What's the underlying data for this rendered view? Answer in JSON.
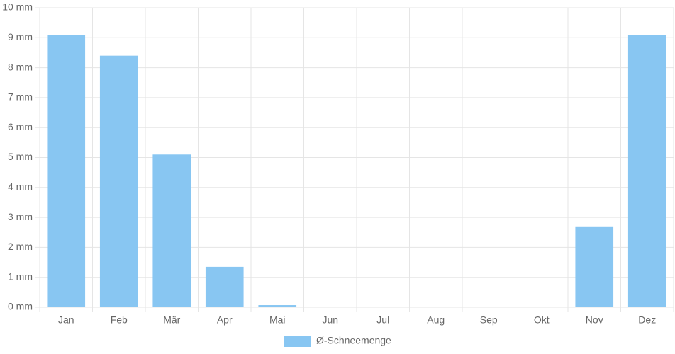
{
  "chart_data": {
    "type": "bar",
    "categories": [
      "Jan",
      "Feb",
      "Mär",
      "Apr",
      "Mai",
      "Jun",
      "Jul",
      "Aug",
      "Sep",
      "Okt",
      "Nov",
      "Dez"
    ],
    "series": [
      {
        "name": "Ø-Schneemenge",
        "color": "#88c6f2",
        "values": [
          9.1,
          8.4,
          5.1,
          1.35,
          0.07,
          0,
          0,
          0,
          0,
          0,
          2.7,
          9.1
        ]
      }
    ],
    "ylim": [
      0,
      10
    ],
    "yticks": [
      {
        "value": 0,
        "label": "0 mm"
      },
      {
        "value": 1,
        "label": "1 mm"
      },
      {
        "value": 2,
        "label": "2 mm"
      },
      {
        "value": 3,
        "label": "3 mm"
      },
      {
        "value": 4,
        "label": "4 mm"
      },
      {
        "value": 5,
        "label": "5 mm"
      },
      {
        "value": 6,
        "label": "6 mm"
      },
      {
        "value": 7,
        "label": "7 mm"
      },
      {
        "value": 8,
        "label": "8 mm"
      },
      {
        "value": 9,
        "label": "9 mm"
      },
      {
        "value": 10,
        "label": "10 mm"
      }
    ],
    "grid": true,
    "legend": "bottom"
  }
}
